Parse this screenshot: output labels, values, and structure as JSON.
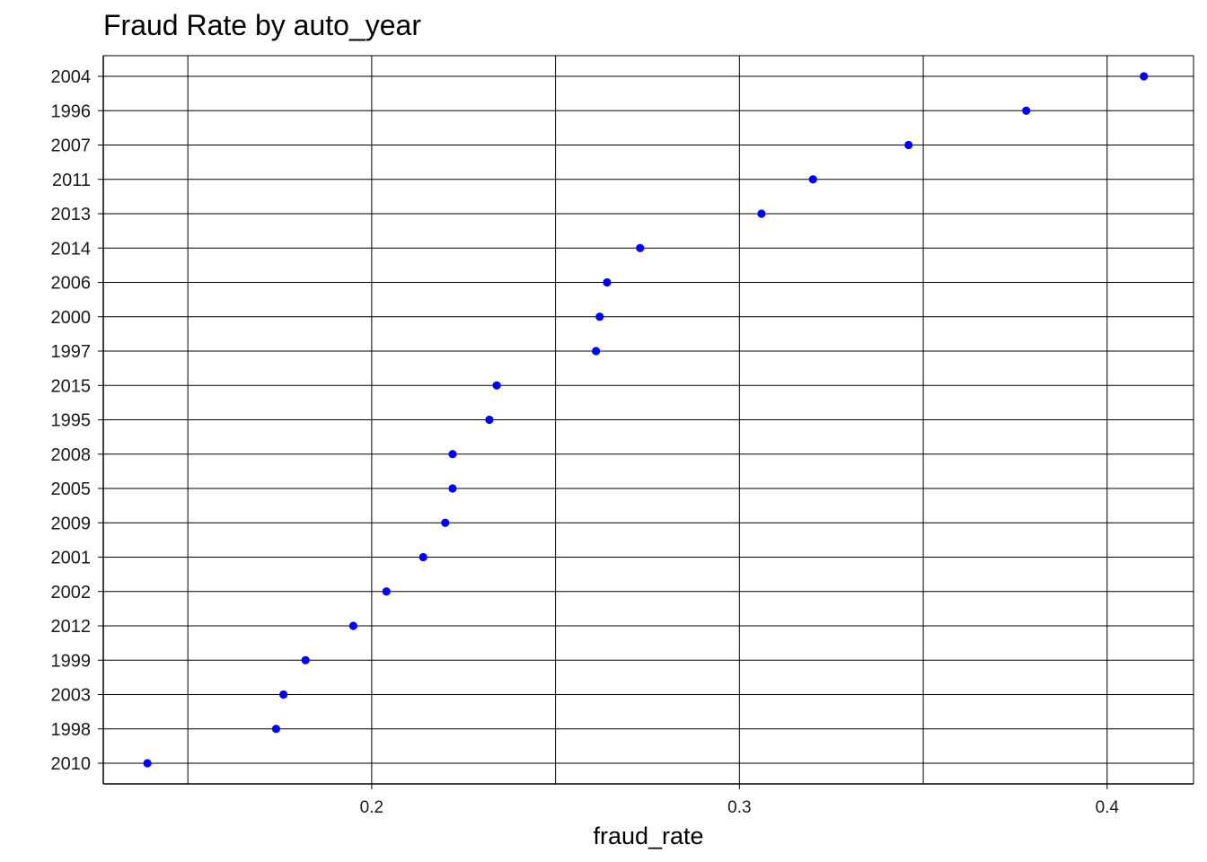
{
  "chart_data": {
    "type": "scatter",
    "title": "Fraud Rate by auto_year",
    "xlabel": "fraud_rate",
    "ylabel": "",
    "xlim": [
      0.127,
      0.4235
    ],
    "x_ticks": [
      0.2,
      0.3,
      0.4
    ],
    "x_tick_labels": [
      "0.2",
      "0.3",
      "0.4"
    ],
    "x_minor_gridlines": [
      0.15,
      0.25,
      0.35
    ],
    "grid": true,
    "legend": "none",
    "point_color": "#0000ff",
    "categories": [
      "2004",
      "1996",
      "2007",
      "2011",
      "2013",
      "2014",
      "2006",
      "2000",
      "1997",
      "2015",
      "1995",
      "2008",
      "2005",
      "2009",
      "2001",
      "2002",
      "2012",
      "1999",
      "2003",
      "1998",
      "2010"
    ],
    "values": [
      0.41,
      0.378,
      0.346,
      0.32,
      0.306,
      0.273,
      0.264,
      0.262,
      0.261,
      0.234,
      0.232,
      0.222,
      0.222,
      0.22,
      0.214,
      0.204,
      0.195,
      0.182,
      0.176,
      0.174,
      0.139
    ]
  }
}
